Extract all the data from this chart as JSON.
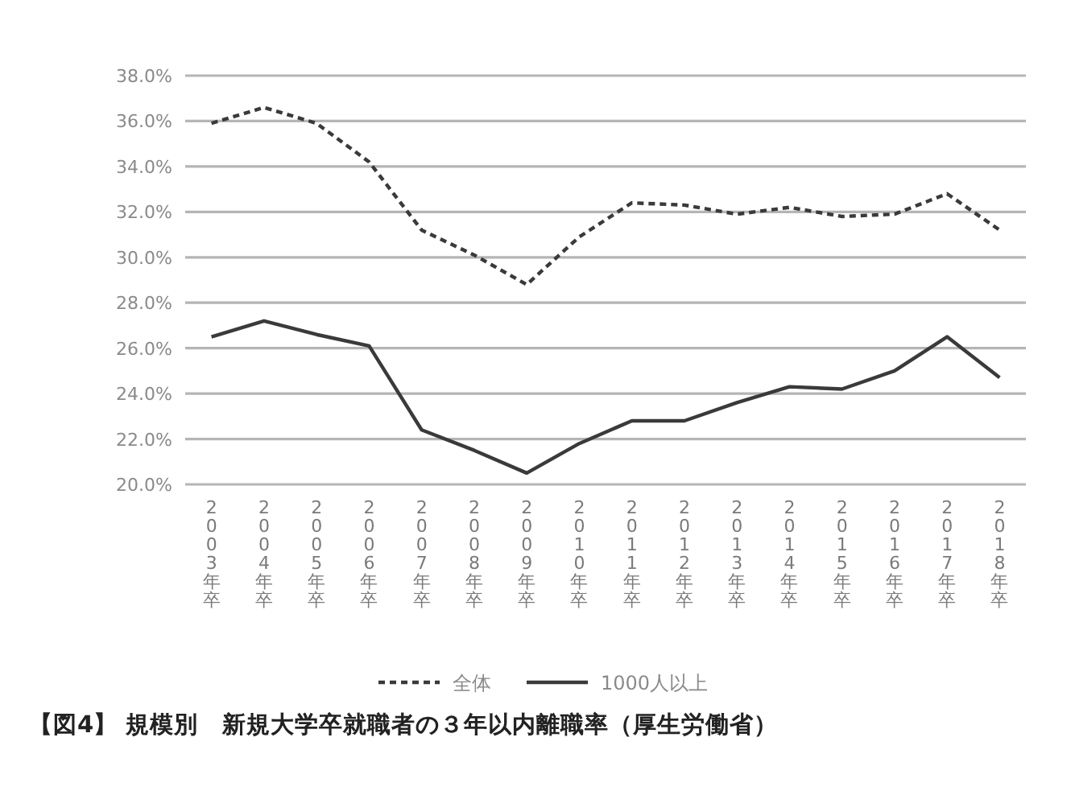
{
  "chart_data": {
    "type": "line",
    "title": "【図4】 規模別　新規大学卒就職者の３年以内離職率（厚生労働省）",
    "categories": [
      "2003年卒",
      "2004年卒",
      "2005年卒",
      "2006年卒",
      "2007年卒",
      "2008年卒",
      "2009年卒",
      "2010年卒",
      "2011年卒",
      "2012年卒",
      "2013年卒",
      "2014年卒",
      "2015年卒",
      "2016年卒",
      "2017年卒",
      "2018年卒"
    ],
    "series": [
      {
        "name": "全体",
        "color": "#3a3a3a",
        "line_style": "dashed",
        "values": [
          35.9,
          36.6,
          35.9,
          34.2,
          31.2,
          30.1,
          28.8,
          30.9,
          32.4,
          32.3,
          31.9,
          32.2,
          31.8,
          31.9,
          32.8,
          31.2
        ]
      },
      {
        "name": "1000人以上",
        "color": "#3a3a3a",
        "line_style": "solid",
        "values": [
          26.5,
          27.2,
          26.6,
          26.1,
          22.4,
          21.5,
          20.5,
          21.8,
          22.8,
          22.8,
          23.6,
          24.3,
          24.2,
          25.0,
          26.5,
          24.7
        ]
      }
    ],
    "ylim": [
      20,
      38
    ],
    "yticks": [
      {
        "value": 20,
        "label": "20.0%"
      },
      {
        "value": 22,
        "label": "22.0%"
      },
      {
        "value": 24,
        "label": "24.0%"
      },
      {
        "value": 26,
        "label": "26.0%"
      },
      {
        "value": 28,
        "label": "28.0%"
      },
      {
        "value": 30,
        "label": "30.0%"
      },
      {
        "value": 32,
        "label": "32.0%"
      },
      {
        "value": 34,
        "label": "34.0%"
      },
      {
        "value": 36,
        "label": "36.0%"
      },
      {
        "value": 38,
        "label": "38.0%"
      }
    ],
    "grid": "y",
    "legend": "bottom",
    "marker": "none"
  }
}
